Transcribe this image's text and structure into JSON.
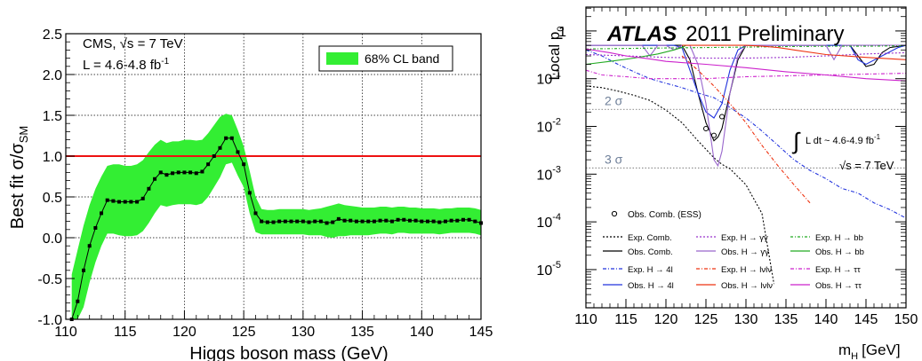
{
  "chart_data": [
    {
      "type": "line",
      "ylabel_main": "Best fit σ/σ",
      "ylabel_sub": "SM",
      "xlabel": "Higgs boson mass (GeV)",
      "xlim": [
        110,
        145
      ],
      "ylim": [
        -1.0,
        2.5
      ],
      "xticks": [
        "110",
        "115",
        "120",
        "125",
        "130",
        "135",
        "140",
        "145"
      ],
      "yticks": [
        "-1.0",
        "-0.5",
        "0.0",
        "0.5",
        "1.0",
        "1.5",
        "2.0",
        "2.5"
      ],
      "info_line1": "CMS, √s = 7 TeV",
      "info_line2_main": "L = 4.6-4.8 fb",
      "info_line2_sup": "-1",
      "legend": [
        "68% CL band"
      ],
      "legend_placement": "top-right",
      "grid": true,
      "colors": {
        "band": "#33ee33",
        "reference": "#ee1111",
        "line": "#000000"
      },
      "reference_line": 1.0,
      "series": [
        {
          "x": [
            110.5,
            111,
            111.5,
            112,
            112.5,
            113,
            113.5,
            114,
            114.5,
            115,
            115.5,
            116,
            116.5,
            117,
            117.5,
            118,
            118.5,
            119,
            119.5,
            120,
            120.5,
            121,
            121.5,
            122,
            122.5,
            123,
            123.5,
            124,
            124.5,
            125,
            125.5,
            126,
            126.5,
            127,
            127.5,
            128,
            128.5,
            129,
            129.5,
            130,
            130.5,
            131,
            131.5,
            132,
            132.5,
            133,
            133.5,
            134,
            134.5,
            135,
            135.5,
            136,
            136.5,
            137,
            137.5,
            138,
            138.5,
            139,
            139.5,
            140,
            140.5,
            141,
            141.5,
            142,
            142.5,
            143,
            143.5,
            144,
            144.5,
            145
          ],
          "y": [
            -1.0,
            -0.78,
            -0.4,
            -0.1,
            0.12,
            0.3,
            0.46,
            0.45,
            0.44,
            0.44,
            0.44,
            0.44,
            0.48,
            0.6,
            0.72,
            0.8,
            0.77,
            0.79,
            0.8,
            0.8,
            0.8,
            0.79,
            0.81,
            0.9,
            1.0,
            1.1,
            1.22,
            1.22,
            1.05,
            0.9,
            0.55,
            0.3,
            0.2,
            0.19,
            0.19,
            0.2,
            0.2,
            0.2,
            0.2,
            0.2,
            0.19,
            0.2,
            0.2,
            0.18,
            0.19,
            0.23,
            0.21,
            0.21,
            0.2,
            0.2,
            0.2,
            0.2,
            0.21,
            0.21,
            0.2,
            0.22,
            0.22,
            0.21,
            0.21,
            0.2,
            0.2,
            0.2,
            0.19,
            0.2,
            0.21,
            0.21,
            0.22,
            0.22,
            0.2,
            0.18
          ],
          "upper": [
            -0.45,
            -0.15,
            0.15,
            0.4,
            0.6,
            0.75,
            0.88,
            0.9,
            0.9,
            0.88,
            0.88,
            0.9,
            0.95,
            1.05,
            1.14,
            1.2,
            1.16,
            1.18,
            1.18,
            1.2,
            1.2,
            1.19,
            1.2,
            1.28,
            1.38,
            1.48,
            1.52,
            1.5,
            1.32,
            1.12,
            0.82,
            0.5,
            0.35,
            0.34,
            0.34,
            0.35,
            0.35,
            0.35,
            0.35,
            0.35,
            0.34,
            0.35,
            0.36,
            0.38,
            0.4,
            0.42,
            0.4,
            0.39,
            0.38,
            0.37,
            0.37,
            0.37,
            0.38,
            0.38,
            0.37,
            0.38,
            0.38,
            0.37,
            0.37,
            0.36,
            0.36,
            0.36,
            0.35,
            0.36,
            0.36,
            0.37,
            0.37,
            0.37,
            0.36,
            0.34
          ],
          "lower": [
            -1.0,
            -1.0,
            -0.85,
            -0.55,
            -0.3,
            -0.1,
            0.05,
            0.05,
            0.03,
            0.02,
            0.02,
            0.03,
            0.08,
            0.18,
            0.3,
            0.4,
            0.38,
            0.4,
            0.41,
            0.41,
            0.41,
            0.4,
            0.42,
            0.5,
            0.62,
            0.74,
            0.9,
            0.92,
            0.76,
            0.62,
            0.3,
            0.07,
            0.04,
            0.04,
            0.04,
            0.04,
            0.04,
            0.04,
            0.04,
            0.04,
            0.03,
            0.03,
            0.03,
            0.01,
            0.0,
            0.02,
            0.02,
            0.03,
            0.03,
            0.03,
            0.03,
            0.04,
            0.05,
            0.05,
            0.04,
            0.06,
            0.06,
            0.05,
            0.05,
            0.05,
            0.05,
            0.05,
            0.04,
            0.05,
            0.06,
            0.06,
            0.06,
            0.06,
            0.05,
            0.03
          ]
        }
      ]
    },
    {
      "type": "line",
      "title_brand": "ATLAS",
      "title_rest": "2011 Preliminary",
      "ylabel_main": "Local p",
      "ylabel_sub": "0",
      "xlabel_main": "m",
      "xlabel_sub": "H",
      "xlabel_unit": "[GeV]",
      "xlim": [
        110,
        150
      ],
      "ylim_log10": [
        -5.8,
        0.5
      ],
      "log_y": true,
      "xticks": [
        "110",
        "115",
        "120",
        "125",
        "130",
        "135",
        "140",
        "145",
        "150"
      ],
      "yticks": [
        {
          "base": "1",
          "exp": ""
        },
        {
          "base": "10",
          "exp": "-1"
        },
        {
          "base": "10",
          "exp": "-2"
        },
        {
          "base": "10",
          "exp": "-3"
        },
        {
          "base": "10",
          "exp": "-4"
        },
        {
          "base": "10",
          "exp": "-5"
        }
      ],
      "sigma_lines": [
        {
          "label": "2 σ",
          "p": 0.0228
        },
        {
          "label": "3 σ",
          "p": 0.00135
        }
      ],
      "lumi_text": "L dt ~ 4.6-4.9 fb",
      "lumi_sup": "-1",
      "energy_text": "√s = 7 TeV",
      "obs_marker_label": "Obs. Comb. (ESS)",
      "legend": [
        {
          "label": "Exp. Comb.",
          "color": "#000000",
          "dash": "2,2"
        },
        {
          "label": "Exp. H → γγ",
          "color": "#9933cc",
          "dash": "2,2"
        },
        {
          "label": "Exp. H → bb",
          "color": "#22aa22",
          "dash": "3,2,1,2"
        },
        {
          "label": "Obs. Comb.",
          "color": "#000000",
          "dash": ""
        },
        {
          "label": "Obs. H → γγ",
          "color": "#9966cc",
          "dash": ""
        },
        {
          "label": "Obs. H → bb",
          "color": "#22aa22",
          "dash": ""
        },
        {
          "label": "Exp. H → 4l",
          "color": "#2233dd",
          "dash": "4,2,1,2"
        },
        {
          "label": "Exp. H → lνlν",
          "color": "#ee3311",
          "dash": "4,2,1,2"
        },
        {
          "label": "Exp. H → ττ",
          "color": "#cc22cc",
          "dash": "4,2,1,2"
        },
        {
          "label": "Obs. H → 4l",
          "color": "#2233dd",
          "dash": ""
        },
        {
          "label": "Obs. H → lνlν",
          "color": "#ee3311",
          "dash": ""
        },
        {
          "label": "Obs. H → ττ",
          "color": "#cc22cc",
          "dash": ""
        }
      ],
      "series": [
        {
          "name": "Exp. Comb.",
          "color": "#000000",
          "dash": "2,2",
          "x": [
            110,
            112,
            114,
            116,
            118,
            120,
            122,
            124,
            126,
            127,
            128,
            130,
            132,
            133.5
          ],
          "y": [
            0.07,
            0.065,
            0.055,
            0.045,
            0.035,
            0.022,
            0.012,
            0.005,
            0.0022,
            0.0016,
            0.0013,
            0.0006,
            0.00015,
            5e-06
          ]
        },
        {
          "name": "Obs. Comb.",
          "color": "#000000",
          "dash": "",
          "x": [
            110,
            120,
            122,
            123,
            124,
            125,
            126,
            126.5,
            127,
            128,
            129,
            130,
            140,
            143,
            144,
            145,
            146,
            147,
            148,
            150
          ],
          "y": [
            0.5,
            0.5,
            0.5,
            0.25,
            0.05,
            0.012,
            0.005,
            0.006,
            0.009,
            0.05,
            0.25,
            0.5,
            0.5,
            0.5,
            0.3,
            0.18,
            0.2,
            0.35,
            0.45,
            0.5
          ]
        },
        {
          "name": "Exp. H → 4l",
          "color": "#2233dd",
          "dash": "4,2,1,2",
          "x": [
            110,
            112,
            114,
            116,
            118,
            120,
            122,
            124,
            126,
            128,
            130,
            132,
            134,
            136,
            138,
            140,
            142,
            144,
            146,
            148,
            150
          ],
          "y": [
            0.4,
            0.3,
            0.2,
            0.14,
            0.1,
            0.08,
            0.065,
            0.05,
            0.04,
            0.025,
            0.015,
            0.008,
            0.004,
            0.002,
            0.0012,
            0.0008,
            0.0005,
            0.0004,
            0.00025,
            0.00018,
            0.00012
          ]
        },
        {
          "name": "Obs. H → 4l",
          "color": "#2233dd",
          "dash": "",
          "x": [
            110,
            120,
            121,
            122,
            123,
            124,
            125,
            126,
            127,
            128,
            129,
            130,
            140,
            143,
            144,
            145,
            147,
            149,
            150
          ],
          "y": [
            0.5,
            0.5,
            0.5,
            0.45,
            0.15,
            0.05,
            0.02,
            0.015,
            0.03,
            0.15,
            0.4,
            0.5,
            0.5,
            0.5,
            0.25,
            0.2,
            0.3,
            0.45,
            0.5
          ]
        },
        {
          "name": "Exp. H → γγ",
          "color": "#9933cc",
          "dash": "2,2",
          "x": [
            110,
            115,
            120,
            125,
            130,
            135,
            140,
            145,
            150
          ],
          "y": [
            0.32,
            0.3,
            0.28,
            0.27,
            0.27,
            0.28,
            0.3,
            0.33,
            0.35
          ]
        },
        {
          "name": "Obs. H → γγ",
          "color": "#9966cc",
          "dash": "",
          "x": [
            110,
            115,
            117,
            118,
            119,
            120,
            121,
            122,
            123,
            124,
            125,
            126,
            126.5,
            127,
            128,
            129,
            130,
            140,
            141,
            142,
            143,
            150
          ],
          "y": [
            0.5,
            0.5,
            0.5,
            0.3,
            0.5,
            0.5,
            0.4,
            0.5,
            0.5,
            0.2,
            0.03,
            0.002,
            0.0015,
            0.003,
            0.05,
            0.3,
            0.5,
            0.5,
            0.25,
            0.5,
            0.5,
            0.5
          ]
        },
        {
          "name": "Exp. H → bb",
          "color": "#22aa22",
          "dash": "3,2,1,2",
          "x": [
            110,
            115,
            120,
            125,
            130,
            135,
            140,
            145,
            150
          ],
          "y": [
            0.42,
            0.43,
            0.44,
            0.45,
            0.46,
            0.47,
            0.48,
            0.48,
            0.49
          ]
        },
        {
          "name": "Obs. H → bb",
          "color": "#22aa22",
          "dash": "",
          "x": [
            110,
            113,
            116,
            119,
            121,
            122,
            122.5
          ],
          "y": [
            0.2,
            0.23,
            0.27,
            0.33,
            0.4,
            0.45,
            0.5
          ]
        },
        {
          "name": "Exp. H → lνlν",
          "color": "#ee3311",
          "dash": "4,2,1,2",
          "x": [
            122,
            124,
            126,
            128,
            130,
            132,
            134,
            136,
            138
          ],
          "y": [
            0.3,
            0.15,
            0.07,
            0.03,
            0.012,
            0.004,
            0.0015,
            0.0006,
            0.00025
          ]
        },
        {
          "name": "Obs. H → lνlν",
          "color": "#ee3311",
          "dash": "",
          "x": [
            122,
            124,
            126,
            128,
            130,
            132,
            134,
            136,
            140,
            145,
            150
          ],
          "y": [
            0.5,
            0.5,
            0.5,
            0.5,
            0.5,
            0.48,
            0.45,
            0.4,
            0.32,
            0.28,
            0.25
          ]
        },
        {
          "name": "Exp. H → ττ",
          "color": "#cc22cc",
          "dash": "4,2,1,2",
          "x": [
            110,
            112,
            115,
            118,
            120,
            125,
            130,
            140,
            150
          ],
          "y": [
            0.15,
            0.12,
            0.11,
            0.1,
            0.1,
            0.1,
            0.11,
            0.12,
            0.13
          ]
        },
        {
          "name": "Obs. H → ττ",
          "color": "#cc22cc",
          "dash": "",
          "x": [
            110,
            113,
            115,
            118,
            120,
            125,
            130,
            135,
            140,
            145,
            150
          ],
          "y": [
            0.42,
            0.35,
            0.3,
            0.26,
            0.23,
            0.2,
            0.17,
            0.14,
            0.12,
            0.1,
            0.09
          ]
        }
      ],
      "obs_markers": {
        "x": [
          125,
          126,
          127
        ],
        "y": [
          0.009,
          0.0065,
          0.016
        ]
      }
    }
  ]
}
